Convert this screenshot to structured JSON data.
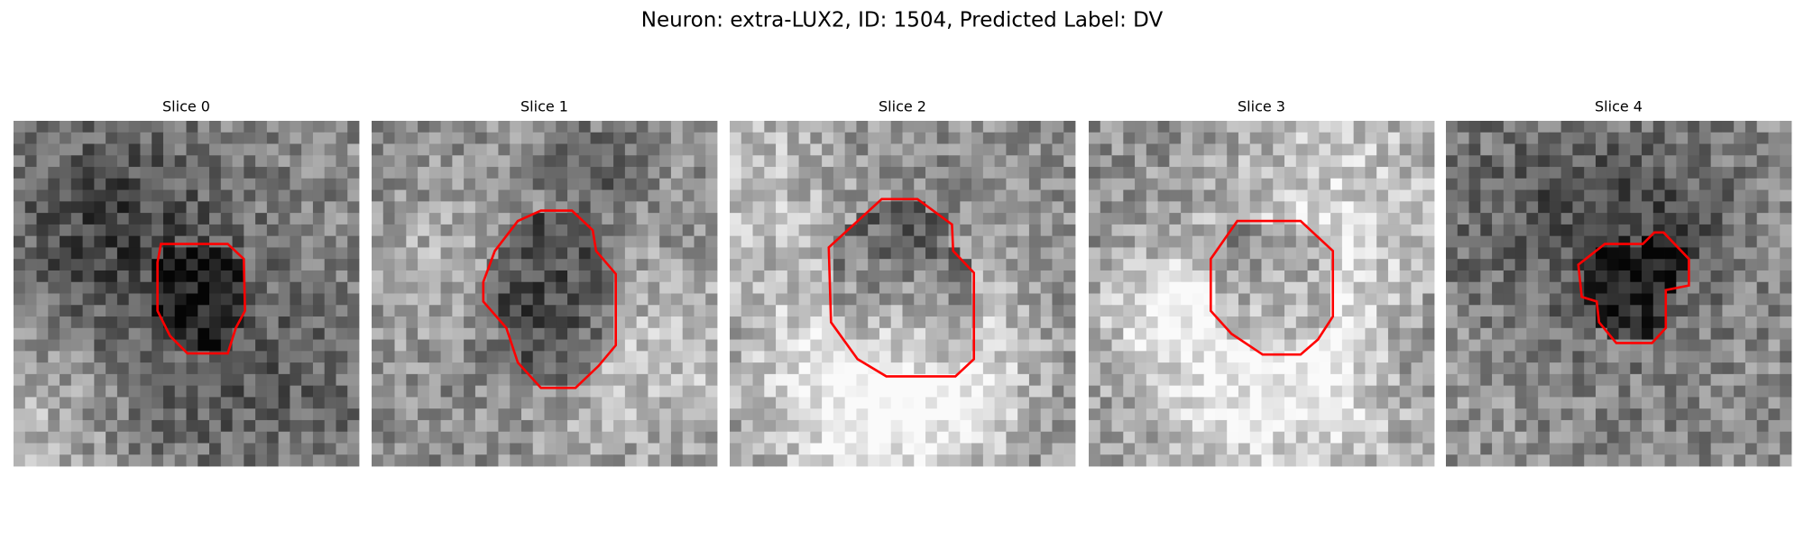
{
  "title": "Neuron: extra-LUX2, ID: 1504, Predicted Label: DV",
  "panels": [
    {
      "title": "Slice 0"
    },
    {
      "title": "Slice 1"
    },
    {
      "title": "Slice 2"
    },
    {
      "title": "Slice 3"
    },
    {
      "title": "Slice 4"
    }
  ]
}
